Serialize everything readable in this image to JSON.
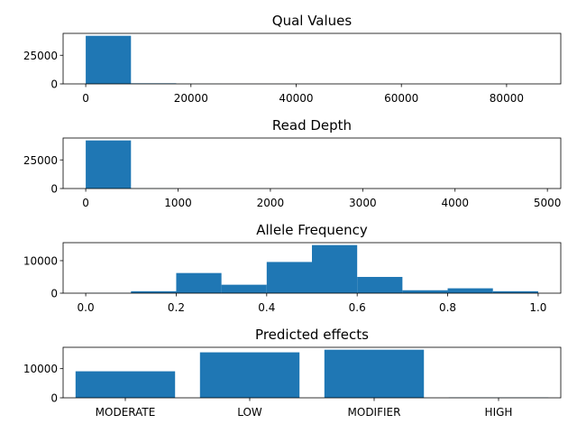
{
  "chart_data": [
    {
      "type": "bar",
      "title": "Qual Values",
      "xlabel": "",
      "ylabel": "",
      "bin_edges": [
        0,
        8600,
        17200,
        25800,
        34400,
        43000,
        51600,
        60200,
        68800,
        77400,
        86000
      ],
      "values": [
        42000,
        500,
        50,
        20,
        10,
        5,
        5,
        0,
        0,
        5
      ],
      "xlim": [
        -4300,
        90300
      ],
      "ylim": [
        0,
        44100
      ],
      "xticks": [
        0,
        20000,
        40000,
        60000,
        80000
      ],
      "yticks": [
        0,
        25000
      ],
      "grid": false,
      "color": "#1f77b4"
    },
    {
      "type": "bar",
      "title": "Read Depth",
      "xlabel": "",
      "ylabel": "",
      "bin_edges": [
        0,
        490,
        980,
        1470,
        1960,
        2450,
        2940,
        3430,
        3920,
        4410,
        4900
      ],
      "values": [
        42000,
        100,
        20,
        10,
        5,
        5,
        0,
        0,
        0,
        5
      ],
      "xlim": [
        -245,
        5145
      ],
      "ylim": [
        0,
        44100
      ],
      "xticks": [
        0,
        1000,
        2000,
        3000,
        4000,
        5000
      ],
      "yticks": [
        0,
        25000
      ],
      "grid": false,
      "color": "#1f77b4"
    },
    {
      "type": "bar",
      "title": "Allele Frequency",
      "xlabel": "",
      "ylabel": "",
      "bin_edges": [
        0,
        0.1,
        0.2,
        0.3,
        0.4,
        0.5,
        0.6,
        0.7,
        0.8,
        0.9,
        1.0
      ],
      "values": [
        50,
        600,
        6200,
        2600,
        9600,
        14800,
        5000,
        900,
        1500,
        600
      ],
      "xlim": [
        -0.05,
        1.05
      ],
      "ylim": [
        0,
        15540
      ],
      "xticks": [
        0.0,
        0.2,
        0.4,
        0.6,
        0.8,
        1.0
      ],
      "xtick_labels": [
        "0.0",
        "0.2",
        "0.4",
        "0.6",
        "0.8",
        "1.0"
      ],
      "yticks": [
        0,
        10000
      ],
      "grid": false,
      "color": "#1f77b4"
    },
    {
      "type": "bar",
      "title": "Predicted effects",
      "xlabel": "",
      "ylabel": "",
      "categories": [
        "MODERATE",
        "LOW",
        "MODIFIER",
        "HIGH"
      ],
      "values": [
        9100,
        15600,
        16500,
        100
      ],
      "ylim": [
        0,
        17325
      ],
      "yticks": [
        0,
        10000
      ],
      "grid": false,
      "color": "#1f77b4"
    }
  ]
}
